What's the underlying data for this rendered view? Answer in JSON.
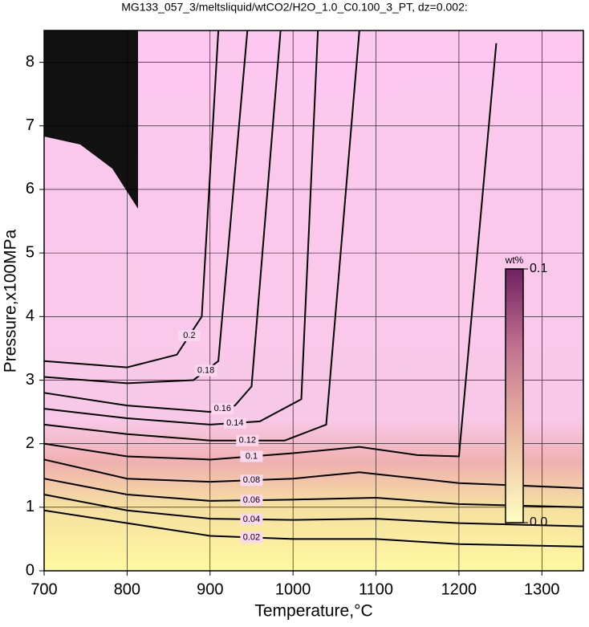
{
  "chart_data": {
    "type": "contour",
    "title": "MG133_057_3/meltsliquid/wtCO2/H2O_1.0_C0.100_3_PT, dz=0.002:",
    "x_label": "Temperature,°C",
    "y_label": "Pressure,x100MPa",
    "xlim": [
      700,
      1350
    ],
    "xticks": [
      700,
      800,
      900,
      1000,
      1100,
      1200,
      1300
    ],
    "ylim": [
      0,
      8.5
    ],
    "yticks": [
      0,
      1,
      2,
      3,
      4,
      5,
      6,
      7,
      8
    ],
    "grid": true,
    "line_color": "#000000",
    "contours": [
      {
        "level": 0.02,
        "x": [
          700,
          800,
          900,
          1000,
          1100,
          1200,
          1350
        ],
        "y": [
          0.95,
          0.75,
          0.55,
          0.5,
          0.5,
          0.42,
          0.38
        ]
      },
      {
        "level": 0.04,
        "x": [
          700,
          800,
          900,
          1000,
          1100,
          1200,
          1350
        ],
        "y": [
          1.2,
          0.95,
          0.82,
          0.8,
          0.82,
          0.75,
          0.7
        ]
      },
      {
        "level": 0.06,
        "x": [
          700,
          800,
          900,
          1000,
          1100,
          1200,
          1350
        ],
        "y": [
          1.45,
          1.2,
          1.1,
          1.12,
          1.15,
          1.05,
          1.0
        ]
      },
      {
        "level": 0.08,
        "x": [
          700,
          800,
          900,
          1000,
          1080,
          1200,
          1350
        ],
        "y": [
          1.75,
          1.45,
          1.4,
          1.45,
          1.55,
          1.38,
          1.3
        ]
      },
      {
        "level": 0.1,
        "x": [
          700,
          800,
          900,
          1000,
          1080,
          1150,
          1200,
          1245
        ],
        "y": [
          2.0,
          1.8,
          1.75,
          1.85,
          1.95,
          1.82,
          1.8,
          8.3
        ]
      },
      {
        "level": 0.12,
        "x": [
          700,
          800,
          900,
          990,
          1040,
          1080
        ],
        "y": [
          2.3,
          2.15,
          2.05,
          2.05,
          2.3,
          8.5
        ]
      },
      {
        "level": 0.14,
        "x": [
          700,
          800,
          900,
          960,
          1010,
          1030
        ],
        "y": [
          2.55,
          2.4,
          2.3,
          2.35,
          2.7,
          8.5
        ]
      },
      {
        "level": 0.16,
        "x": [
          700,
          800,
          900,
          930,
          950,
          985
        ],
        "y": [
          2.8,
          2.6,
          2.5,
          2.6,
          2.9,
          8.5
        ]
      },
      {
        "level": 0.18,
        "x": [
          700,
          800,
          880,
          910,
          945
        ],
        "y": [
          3.05,
          2.95,
          3.0,
          3.3,
          8.5
        ]
      },
      {
        "level": 0.2,
        "x": [
          700,
          800,
          860,
          890,
          910
        ],
        "y": [
          3.3,
          3.2,
          3.4,
          4.0,
          8.5
        ]
      }
    ],
    "colorbar": {
      "title": "wt%",
      "lim": [
        0,
        0.1
      ],
      "ticks": [
        {
          "value": 0,
          "label": "0.0"
        },
        0.1
      ]
    }
  }
}
